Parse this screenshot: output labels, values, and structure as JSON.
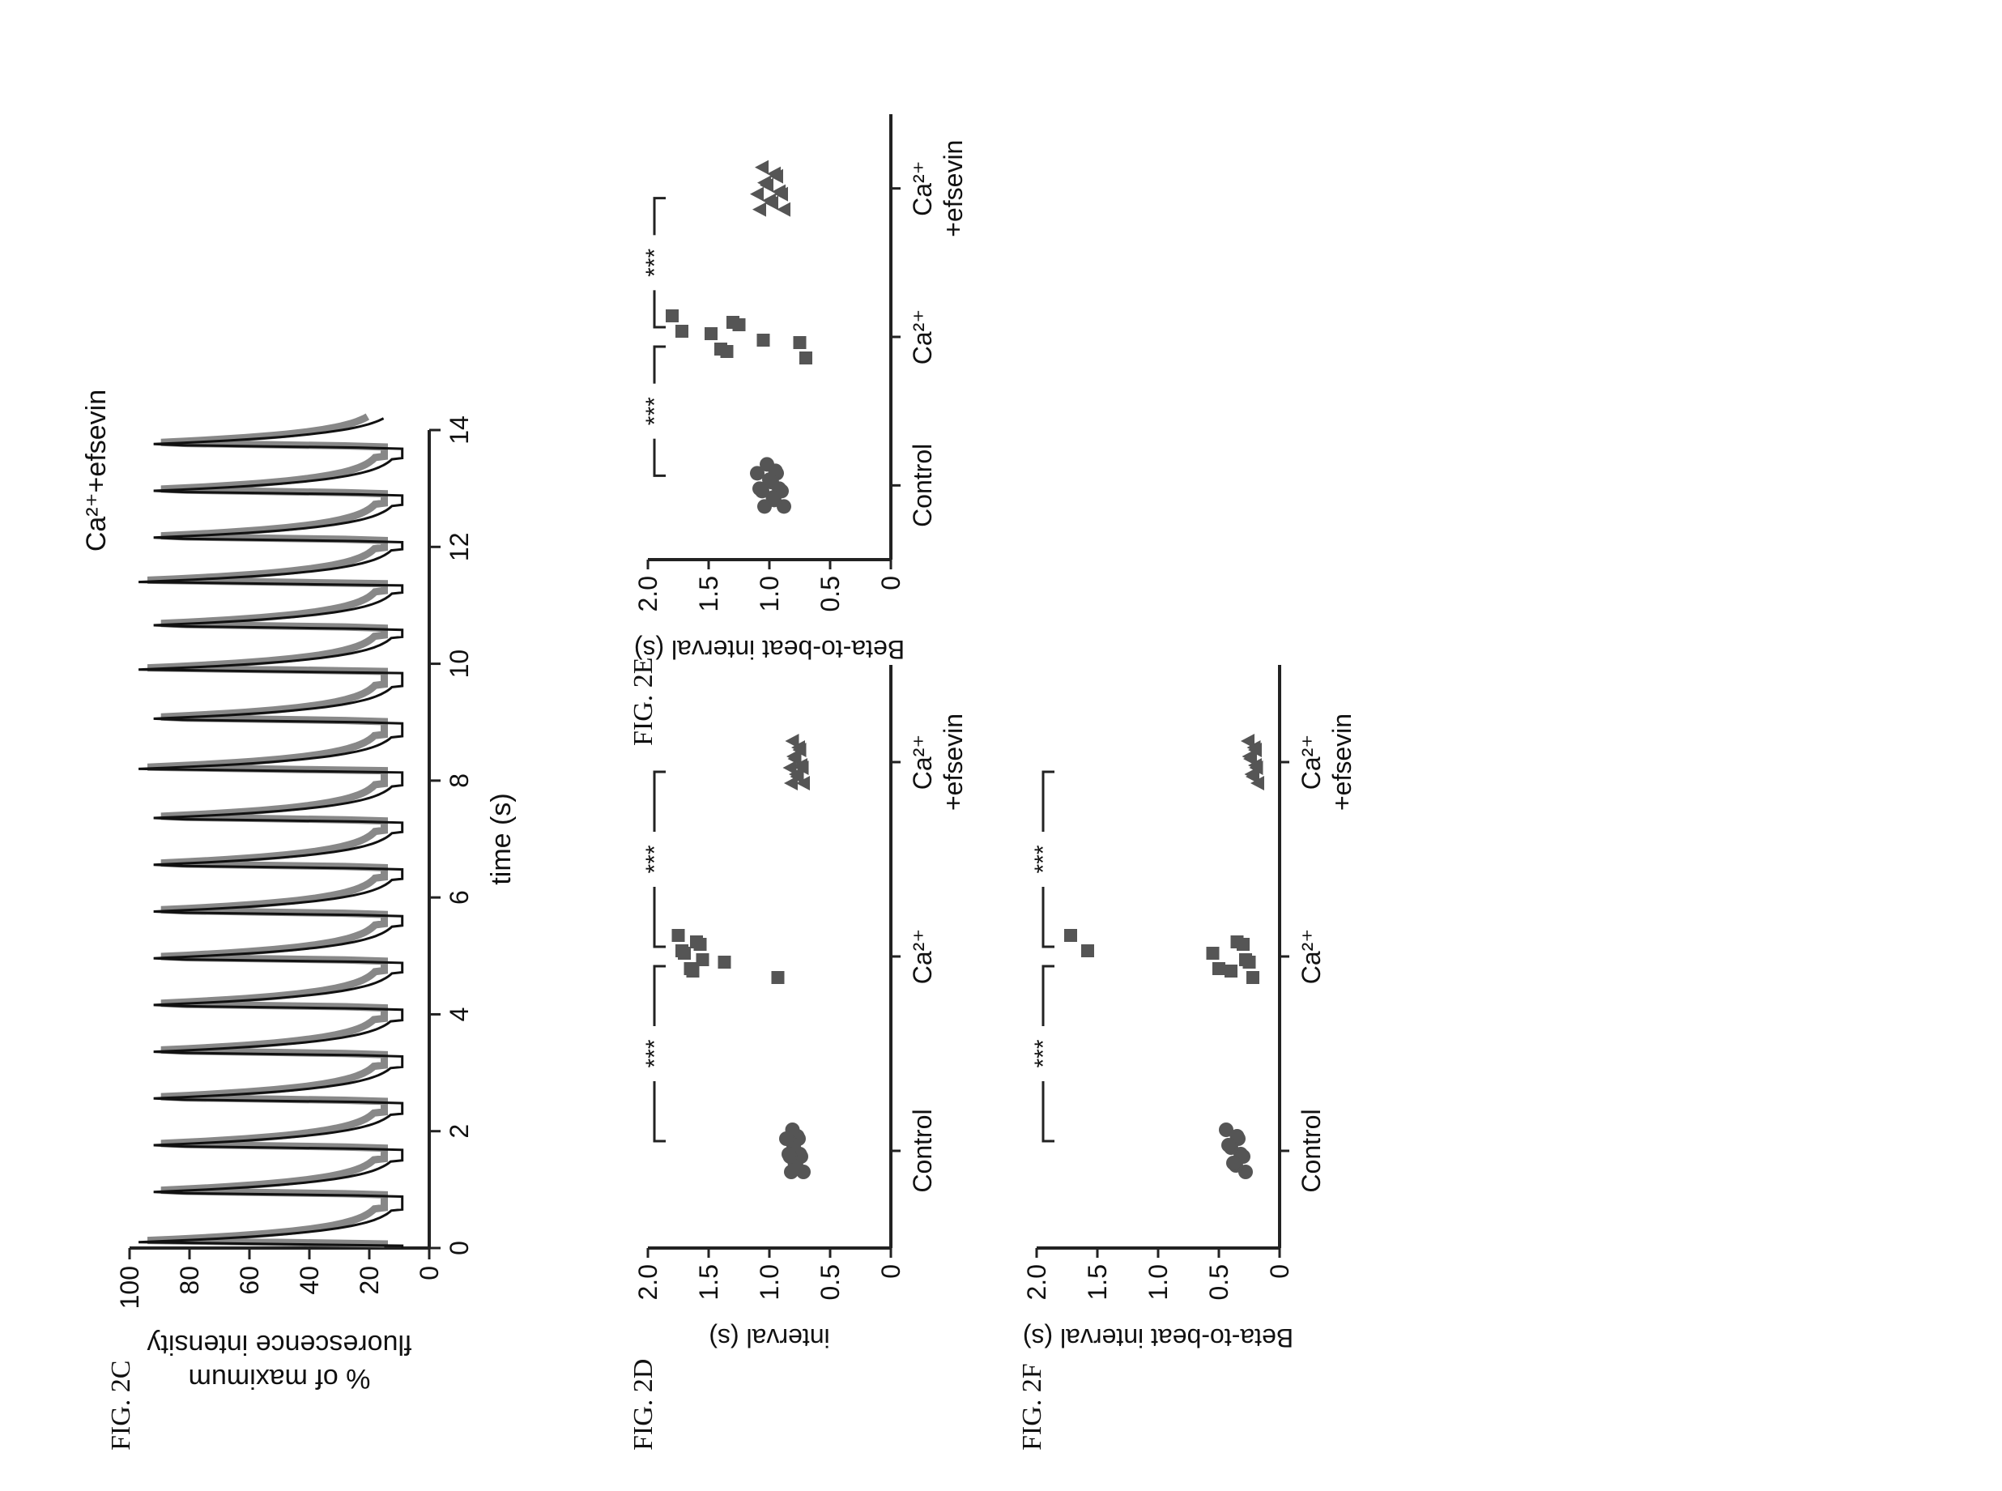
{
  "chart_data": [
    {
      "id": "2C",
      "fig_label": "FIG. 2C",
      "type": "line",
      "title": "Ca²⁺+efsevin",
      "xlabel": "time (s)",
      "ylabel": "% of maximum fluorescence intensity",
      "ylabel_lines": [
        "% of maximum",
        "fluorescence intensity"
      ],
      "xlim": [
        0,
        14
      ],
      "ylim": [
        0,
        100
      ],
      "x_ticks": [
        0,
        2,
        4,
        6,
        8,
        10,
        12,
        14
      ],
      "y_ticks": [
        0,
        20,
        40,
        60,
        80,
        100
      ],
      "series": [
        {
          "peak_times": [
            0.1,
            0.95,
            1.75,
            2.55,
            3.35,
            4.15,
            4.95,
            5.75,
            6.55,
            7.35,
            8.2,
            9.05,
            9.9,
            10.65,
            11.4,
            12.15,
            12.95,
            13.75
          ],
          "peak_value": 97,
          "trough_value": 9
        }
      ]
    },
    {
      "id": "2D",
      "fig_label": "FIG. 2D",
      "type": "scatter",
      "ylabel": "interval (s)",
      "ylim": [
        0,
        2.0
      ],
      "y_ticks": [
        "0",
        "0.5",
        "1.0",
        "1.5",
        "2.0"
      ],
      "categories": [
        {
          "label": "Control",
          "label_lines": [
            "Control"
          ],
          "marker": "circle",
          "values": [
            0.72,
            0.74,
            0.75,
            0.76,
            0.77,
            0.78,
            0.79,
            0.8,
            0.8,
            0.81,
            0.82,
            0.83,
            0.84,
            0.86
          ]
        },
        {
          "label": "Ca²⁺",
          "label_lines": [
            "Ca²⁺"
          ],
          "marker": "square",
          "values": [
            0.93,
            1.37,
            1.55,
            1.57,
            1.6,
            1.63,
            1.65,
            1.7,
            1.72,
            1.75
          ]
        },
        {
          "label": "Ca²⁺ +efsevin",
          "label_lines": [
            "Ca²⁺",
            "+efsevin"
          ],
          "marker": "triangle",
          "values": [
            0.72,
            0.73,
            0.74,
            0.75,
            0.76,
            0.77,
            0.78,
            0.79,
            0.8,
            0.81,
            0.82,
            0.83
          ]
        }
      ],
      "significance": [
        {
          "from": 0,
          "to": 1,
          "label": "***"
        },
        {
          "from": 1,
          "to": 2,
          "label": "***"
        }
      ]
    },
    {
      "id": "2E",
      "fig_label": "FIG. 2E",
      "type": "scatter",
      "ylabel": "Beta-to-beat interval (s)",
      "ylim": [
        0,
        2.0
      ],
      "y_ticks": [
        "0",
        "0.5",
        "1.0",
        "1.5",
        "2.0"
      ],
      "categories": [
        {
          "label": "Control",
          "label_lines": [
            "Control"
          ],
          "marker": "circle",
          "values": [
            0.88,
            0.9,
            0.92,
            0.94,
            0.95,
            0.96,
            0.97,
            0.98,
            1.0,
            1.02,
            1.04,
            1.06,
            1.08,
            1.1
          ]
        },
        {
          "label": "Ca²⁺",
          "label_lines": [
            "Ca²⁺"
          ],
          "marker": "square",
          "values": [
            0.7,
            0.75,
            1.05,
            1.25,
            1.3,
            1.35,
            1.4,
            1.48,
            1.72,
            1.8
          ]
        },
        {
          "label": "Ca²⁺ +efsevin",
          "label_lines": [
            "Ca²⁺",
            "+efsevin"
          ],
          "marker": "triangle",
          "values": [
            0.88,
            0.9,
            0.92,
            0.94,
            0.96,
            0.98,
            1.0,
            1.02,
            1.04,
            1.06,
            1.08,
            1.1
          ]
        }
      ],
      "significance": [
        {
          "from": 0,
          "to": 1,
          "label": "***"
        },
        {
          "from": 1,
          "to": 2,
          "label": "***"
        }
      ]
    },
    {
      "id": "2F",
      "fig_label": "FIG. 2F",
      "type": "scatter",
      "ylabel": "Beta-to-beat interval (s)",
      "ylim": [
        0,
        2.0
      ],
      "y_ticks": [
        "0",
        "0.5",
        "1.0",
        "1.5",
        "2.0"
      ],
      "categories": [
        {
          "label": "Control",
          "label_lines": [
            "Control"
          ],
          "marker": "circle",
          "values": [
            0.28,
            0.3,
            0.32,
            0.34,
            0.35,
            0.36,
            0.38,
            0.4,
            0.42,
            0.44
          ]
        },
        {
          "label": "Ca²⁺",
          "label_lines": [
            "Ca²⁺"
          ],
          "marker": "square",
          "values": [
            0.22,
            0.25,
            0.28,
            0.3,
            0.35,
            0.4,
            0.5,
            0.55,
            1.58,
            1.72
          ]
        },
        {
          "label": "Ca²⁺ +efsevin",
          "label_lines": [
            "Ca²⁺",
            "+efsevin"
          ],
          "marker": "triangle",
          "values": [
            0.18,
            0.19,
            0.2,
            0.2,
            0.21,
            0.22,
            0.23,
            0.24,
            0.25,
            0.26
          ]
        }
      ],
      "significance": [
        {
          "from": 0,
          "to": 1,
          "label": "***"
        },
        {
          "from": 1,
          "to": 2,
          "label": "***"
        }
      ]
    }
  ]
}
